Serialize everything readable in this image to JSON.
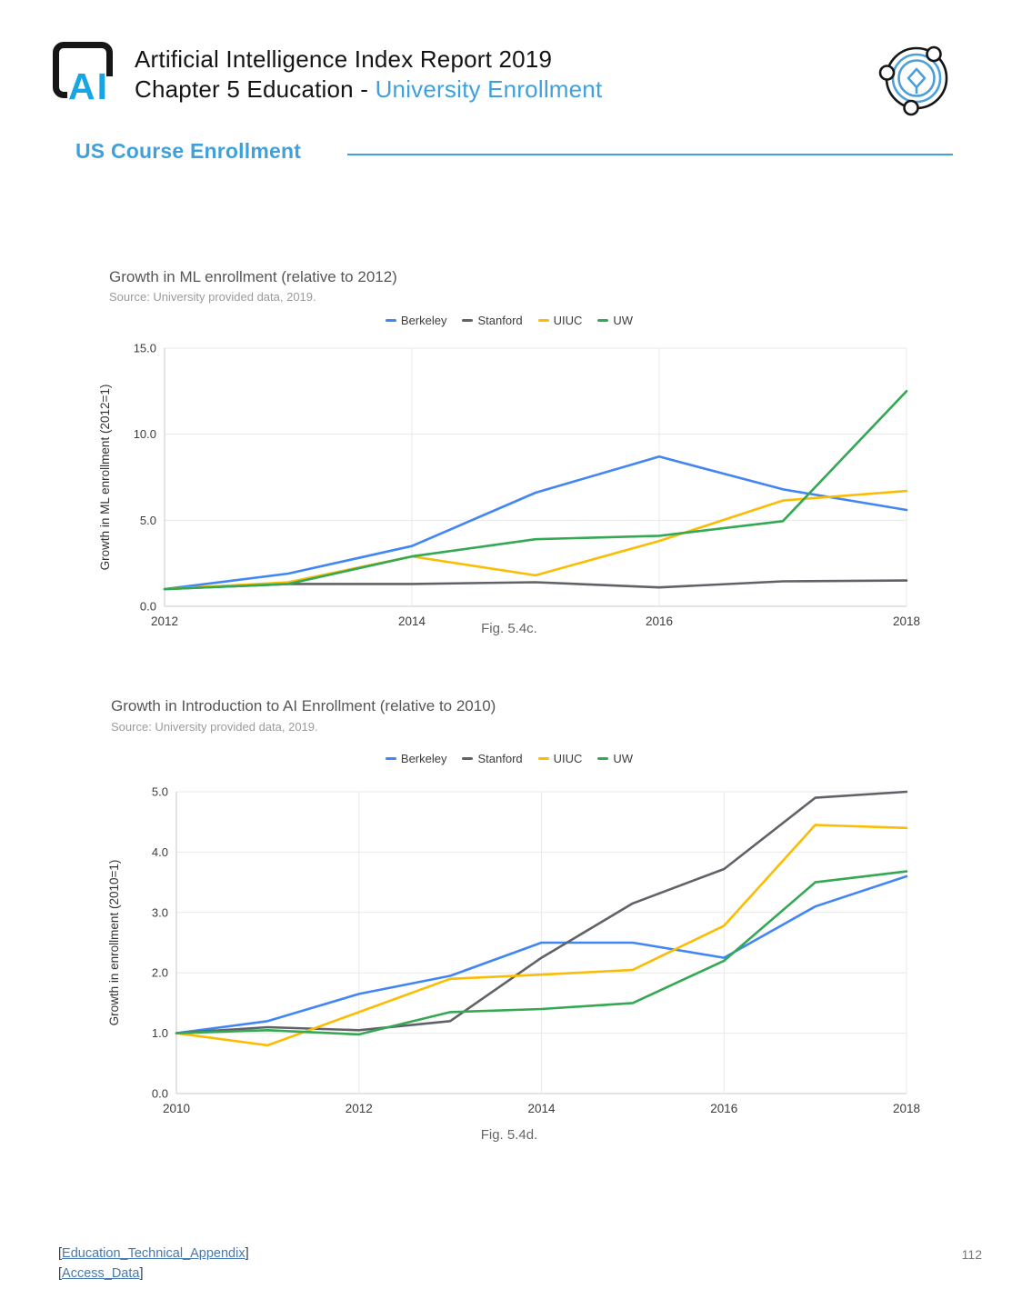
{
  "colors": {
    "accent": "#3FA0DC",
    "logo_blue": "#17A5E5",
    "link_blue": "#4679AE",
    "series_berkeley": "#4285F4",
    "series_stanford": "#5F6368",
    "series_uiuc": "#FBBC04",
    "series_uw": "#34A853"
  },
  "header": {
    "logo_text": "AI",
    "title_line1": "Artificial Intelligence Index Report 2019",
    "title_line2_prefix": "Chapter 5 Education - ",
    "title_line2_accent": "University Enrollment"
  },
  "section": {
    "title": "US Course Enrollment"
  },
  "chart_data": [
    {
      "type": "line",
      "title": "Growth in ML enrollment (relative to 2012)",
      "source": "Source: University provided data, 2019.",
      "caption": "Fig. 5.4c.",
      "xlabel": "",
      "ylabel": "Growth in ML enrollment (2012=1)",
      "x": [
        2012,
        2013,
        2014,
        2015,
        2016,
        2017,
        2018
      ],
      "xticks": [
        "2012",
        "2014",
        "2016",
        "2018"
      ],
      "yticks": [
        "0.0",
        "5.0",
        "10.0",
        "15.0"
      ],
      "ylim": [
        0,
        15
      ],
      "grid": true,
      "legend_position": "top",
      "series": [
        {
          "name": "Berkeley",
          "color": "#4285F4",
          "values": [
            1.0,
            1.9,
            3.5,
            6.6,
            8.7,
            6.8,
            5.6
          ]
        },
        {
          "name": "Stanford",
          "color": "#5F6368",
          "values": [
            1.0,
            1.3,
            1.3,
            1.4,
            1.1,
            1.45,
            1.5
          ]
        },
        {
          "name": "UIUC",
          "color": "#FBBC04",
          "values": [
            1.0,
            1.4,
            2.9,
            1.8,
            3.8,
            6.15,
            6.7
          ]
        },
        {
          "name": "UW",
          "color": "#34A853",
          "values": [
            1.0,
            1.3,
            2.9,
            3.9,
            4.1,
            4.95,
            12.5
          ]
        }
      ]
    },
    {
      "type": "line",
      "title": "Growth in Introduction to AI Enrollment (relative to 2010)",
      "source": "Source: University provided data, 2019.",
      "caption": "Fig. 5.4d.",
      "xlabel": "",
      "ylabel": "Growth in enrollment (2010=1)",
      "x": [
        2010,
        2011,
        2012,
        2013,
        2014,
        2015,
        2016,
        2017,
        2018
      ],
      "xticks": [
        "2010",
        "2012",
        "2014",
        "2016",
        "2018"
      ],
      "yticks": [
        "0.0",
        "1.0",
        "2.0",
        "3.0",
        "4.0",
        "5.0"
      ],
      "ylim": [
        0,
        5
      ],
      "grid": true,
      "legend_position": "top",
      "series": [
        {
          "name": "Berkeley",
          "color": "#4285F4",
          "values": [
            1.0,
            1.2,
            1.65,
            1.95,
            2.5,
            2.5,
            2.25,
            3.1,
            3.6
          ]
        },
        {
          "name": "Stanford",
          "color": "#5F6368",
          "values": [
            1.0,
            1.1,
            1.05,
            1.2,
            2.25,
            3.15,
            3.72,
            4.9,
            5.0
          ]
        },
        {
          "name": "UIUC",
          "color": "#FBBC04",
          "values": [
            1.0,
            0.8,
            1.35,
            1.9,
            1.97,
            2.05,
            2.78,
            4.45,
            4.4
          ]
        },
        {
          "name": "UW",
          "color": "#34A853",
          "values": [
            1.0,
            1.05,
            0.98,
            1.35,
            1.4,
            1.5,
            2.2,
            3.5,
            3.68
          ]
        }
      ]
    }
  ],
  "footer": {
    "links": [
      {
        "prefix": "[",
        "label": "Education_Technical_Appendix",
        "suffix": "]"
      },
      {
        "prefix": "[",
        "label": "Access_Data",
        "suffix": "]"
      }
    ],
    "page_number": "112"
  }
}
